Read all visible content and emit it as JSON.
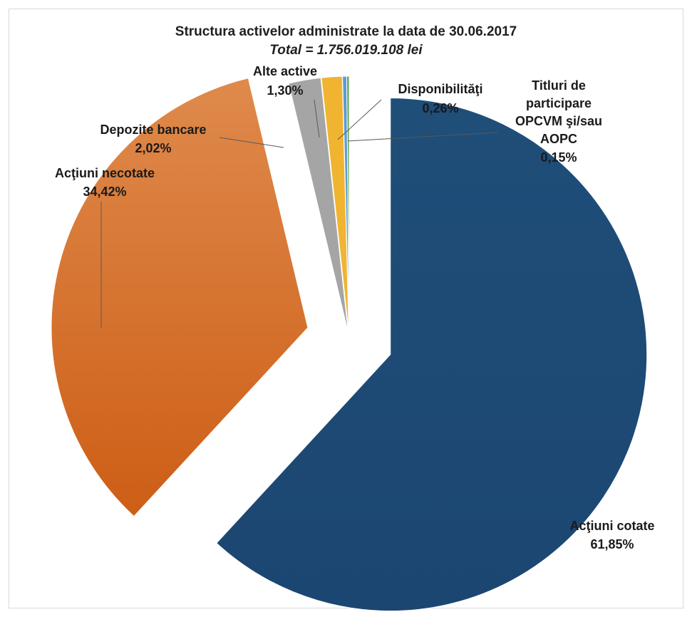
{
  "chart_data": {
    "type": "pie",
    "title": "Structura activelor administrate la data de 30.06.2017",
    "subtitle": "Total  = 1.756.019.108  lei",
    "slices": [
      {
        "name": "Acţiuni cotate",
        "value": 61.85,
        "label": "61,85%",
        "color": "#1f4e79"
      },
      {
        "name": "Acţiuni necotate",
        "value": 34.42,
        "label": "34,42%",
        "color": "#d0692a"
      },
      {
        "name": "Depozite bancare",
        "value": 2.02,
        "label": "2,02%",
        "color": "#a5a5a5"
      },
      {
        "name": "Alte active",
        "value": 1.3,
        "label": "1,30%",
        "color": "#f0b431"
      },
      {
        "name": "Disponibilităţi",
        "value": 0.26,
        "label": "0,26%",
        "color": "#5b9bd5"
      },
      {
        "name": "Titluri de participare OPCVM şi/sau AOPC",
        "value": 0.15,
        "label": "0,15%",
        "color": "#5ca345"
      }
    ]
  }
}
